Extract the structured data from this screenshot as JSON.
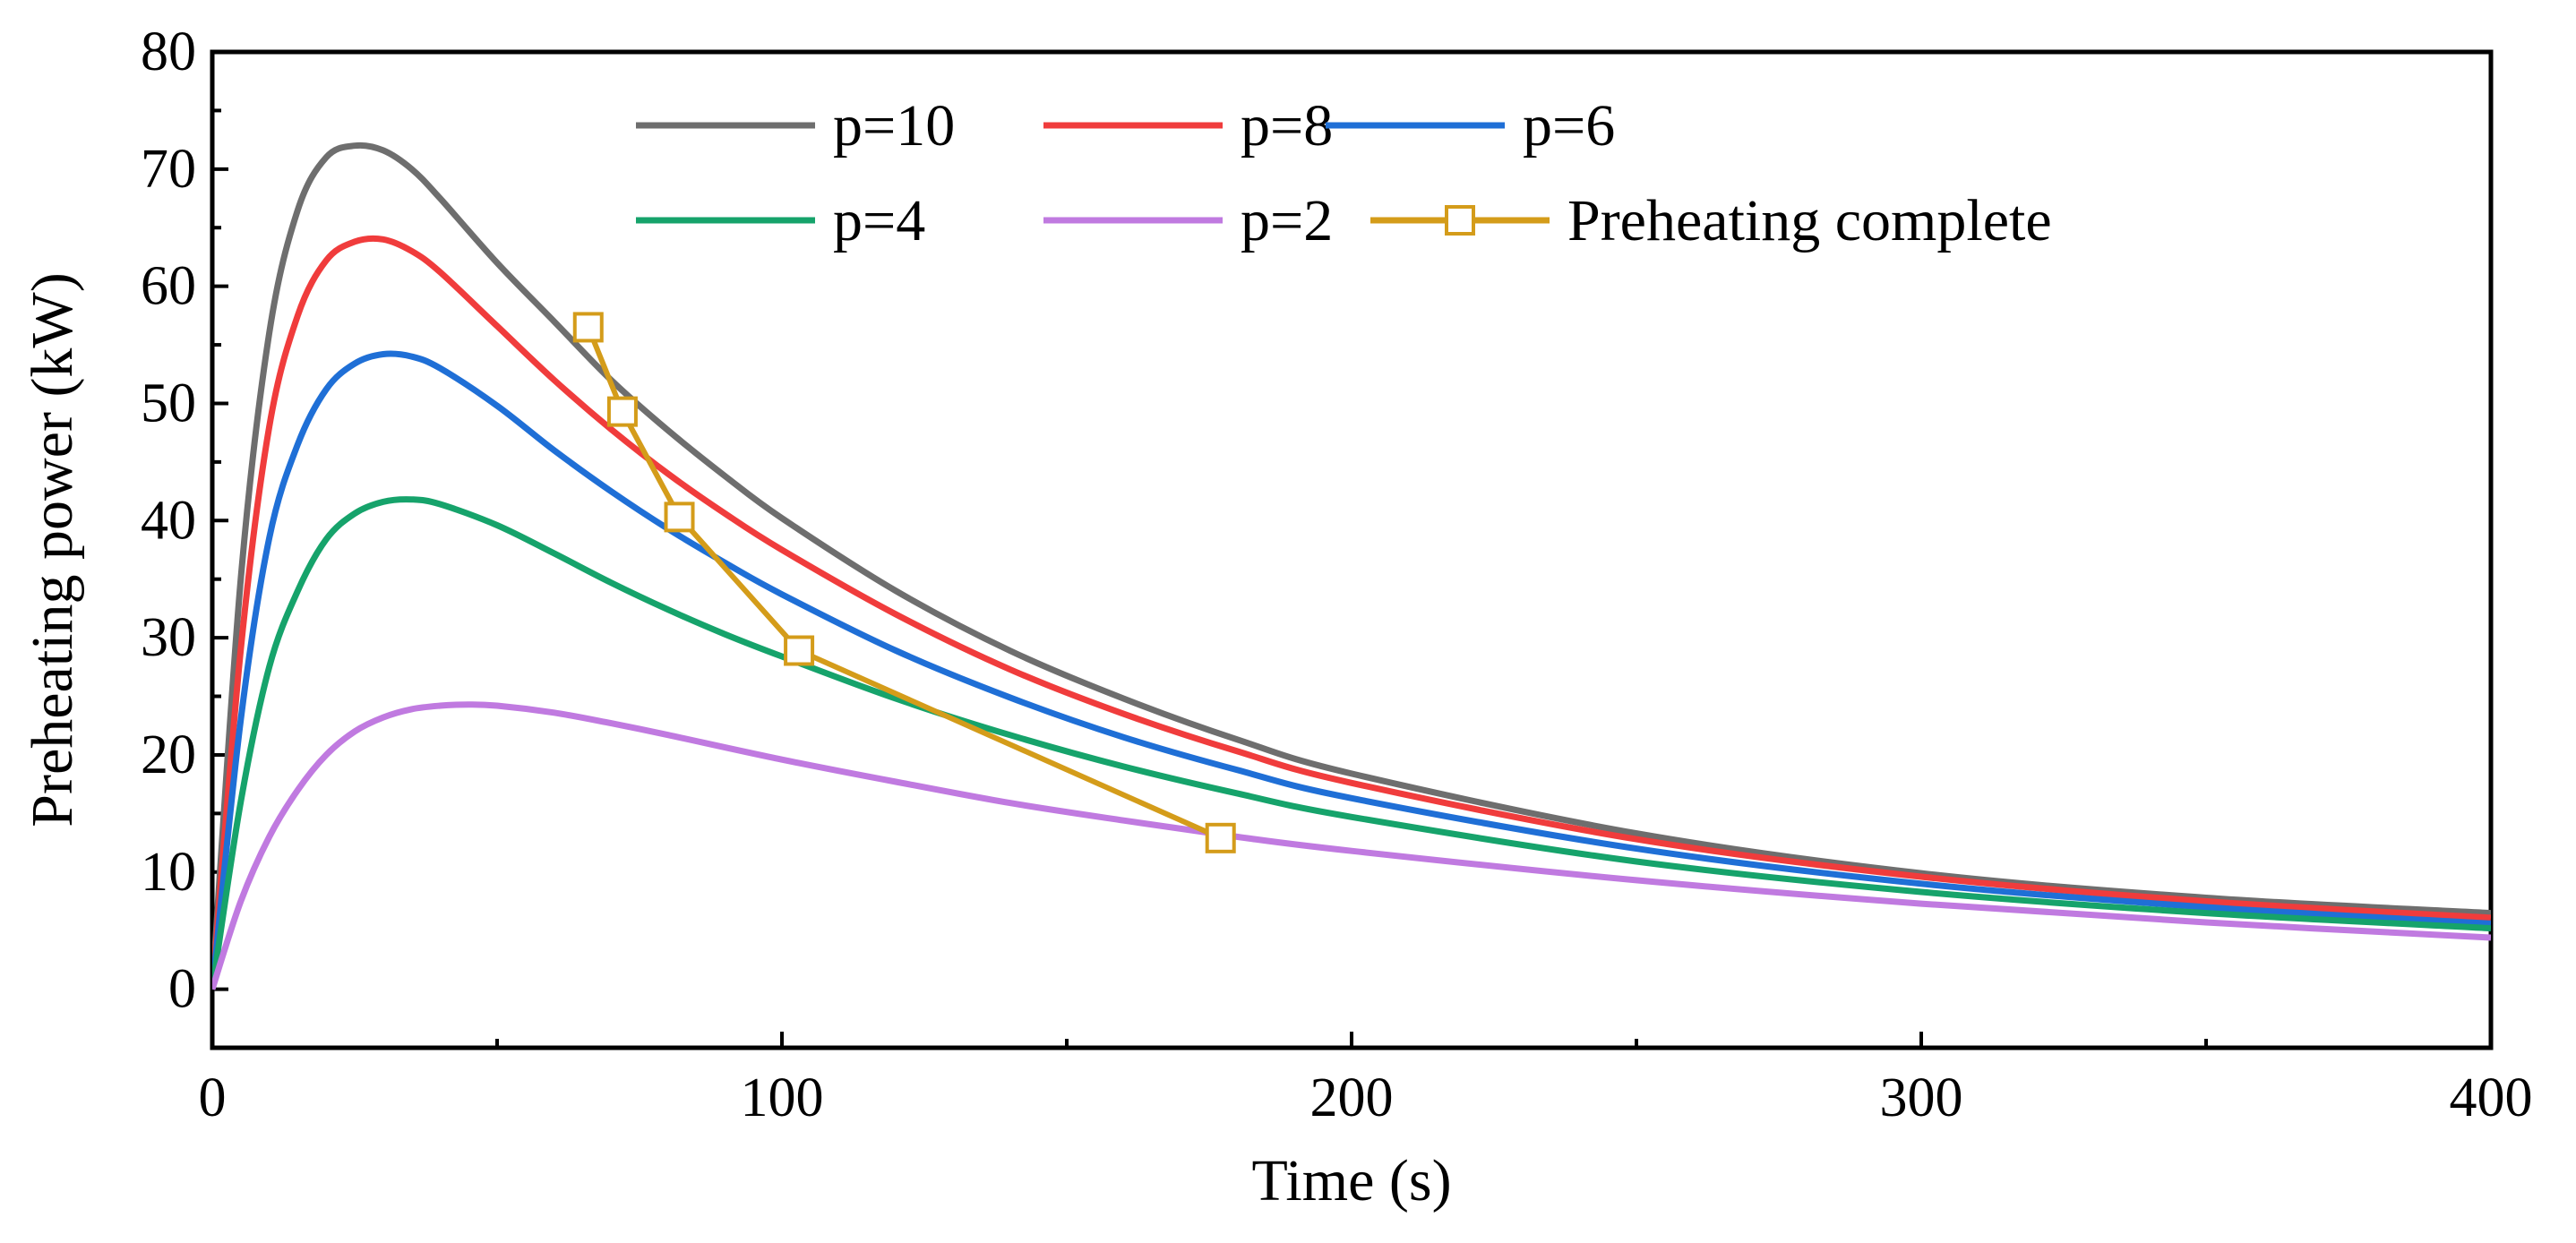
{
  "chart_data": {
    "type": "line",
    "title": "",
    "xlabel": "Time (s)",
    "ylabel": "Preheating power (kW)",
    "xlim": [
      0,
      400
    ],
    "ylim": [
      -5,
      80
    ],
    "xticks": [
      0,
      100,
      200,
      300,
      400
    ],
    "xtick_labels": [
      "0",
      "100",
      "200",
      "300",
      "400"
    ],
    "yticks": [
      0,
      10,
      20,
      30,
      40,
      50,
      60,
      70,
      80
    ],
    "ytick_labels": [
      "0",
      "10",
      "20",
      "30",
      "40",
      "50",
      "60",
      "70",
      "80"
    ],
    "grid": false,
    "legend_position": "top",
    "series": [
      {
        "name": "p=10",
        "color": "#6e6e6e",
        "x": [
          0,
          5,
          10,
          15,
          20,
          25,
          30,
          35,
          40,
          50,
          60,
          70,
          80,
          90,
          100,
          120,
          140,
          160,
          180,
          200,
          250,
          300,
          350,
          400
        ],
        "y": [
          0,
          35,
          56,
          66.5,
          71,
          72,
          71.6,
          70,
          67.5,
          62,
          57,
          52,
          47.7,
          43.8,
          40.2,
          34,
          28.9,
          24.8,
          21.3,
          18.4,
          13.3,
          9.9,
          7.8,
          6.5
        ]
      },
      {
        "name": "p=8",
        "color": "#f03c3c",
        "x": [
          0,
          5,
          10,
          15,
          20,
          25,
          30,
          35,
          40,
          50,
          60,
          70,
          80,
          90,
          100,
          120,
          140,
          160,
          180,
          200,
          250,
          300,
          350,
          400
        ],
        "y": [
          0,
          29,
          48,
          57.5,
          62.2,
          63.8,
          64,
          63,
          61.2,
          56.6,
          52,
          47.8,
          44,
          40.6,
          37.5,
          32,
          27.3,
          23.5,
          20.3,
          17.6,
          12.8,
          9.6,
          7.5,
          6.1
        ]
      },
      {
        "name": "p=6",
        "color": "#1f6fd6",
        "x": [
          0,
          5,
          10,
          15,
          20,
          25,
          30,
          35,
          40,
          50,
          60,
          70,
          80,
          90,
          100,
          120,
          140,
          160,
          180,
          200,
          250,
          300,
          350,
          400
        ],
        "y": [
          0,
          23,
          38.5,
          46.5,
          51.2,
          53.4,
          54.2,
          54,
          53,
          49.8,
          46,
          42.5,
          39.3,
          36.4,
          33.7,
          28.9,
          24.9,
          21.5,
          18.7,
          16.3,
          12,
          9,
          7,
          5.6
        ]
      },
      {
        "name": "p=4",
        "color": "#16a36b",
        "x": [
          0,
          5,
          10,
          15,
          20,
          25,
          30,
          35,
          40,
          50,
          60,
          70,
          80,
          90,
          100,
          120,
          140,
          160,
          180,
          200,
          250,
          300,
          350,
          400
        ],
        "y": [
          0,
          16,
          27.5,
          34,
          38.4,
          40.6,
          41.6,
          41.8,
          41.4,
          39.6,
          37.2,
          34.7,
          32.4,
          30.3,
          28.4,
          24.8,
          21.7,
          19,
          16.7,
          14.7,
          10.9,
          8.3,
          6.5,
          5.2
        ]
      },
      {
        "name": "p=2",
        "color": "#c07ae0",
        "x": [
          0,
          5,
          10,
          15,
          20,
          25,
          30,
          35,
          40,
          45,
          50,
          60,
          70,
          80,
          100,
          120,
          140,
          160,
          180,
          200,
          250,
          300,
          350,
          400
        ],
        "y": [
          0,
          7.5,
          13,
          17,
          20,
          22,
          23.2,
          23.9,
          24.2,
          24.3,
          24.2,
          23.6,
          22.7,
          21.7,
          19.6,
          17.7,
          15.9,
          14.4,
          13,
          11.8,
          9.3,
          7.3,
          5.7,
          4.4
        ]
      },
      {
        "name": "Preheating complete",
        "color": "#d49c1a",
        "marker": "square",
        "x": [
          66,
          72,
          82,
          103,
          177
        ],
        "y": [
          56.5,
          49.3,
          40.3,
          28.9,
          12.9
        ]
      }
    ]
  }
}
